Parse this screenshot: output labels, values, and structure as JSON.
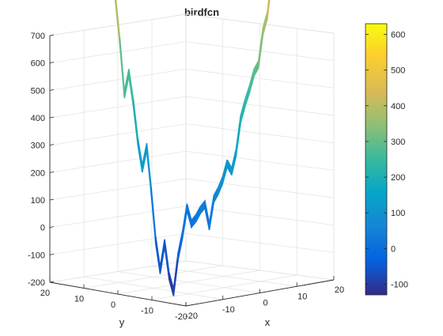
{
  "chart_data": {
    "type": "surface",
    "title": "birdfcn",
    "xlabel": "x",
    "ylabel": "y",
    "zlabel": "",
    "x_ticks": [
      "-20",
      "-10",
      "0",
      "10",
      "20"
    ],
    "y_ticks": [
      "20",
      "10",
      "0",
      "-10",
      "-20"
    ],
    "z_ticks": [
      "-200",
      "-100",
      "0",
      "100",
      "200",
      "300",
      "400",
      "500",
      "600",
      "700"
    ],
    "zlim": [
      -200,
      700
    ],
    "colorbar": {
      "ticks": [
        "-100",
        "0",
        "100",
        "200",
        "300",
        "400",
        "500",
        "600"
      ],
      "range": [
        -130,
        630
      ],
      "colormap": "parula"
    },
    "profile": {
      "description_units": "horizontal position along front edge (-1 left to 1 right) vs z value",
      "points": [
        [
          -1.0,
          635
        ],
        [
          -0.95,
          560
        ],
        [
          -0.9,
          505
        ],
        [
          -0.85,
          420
        ],
        [
          -0.8,
          340
        ],
        [
          -0.75,
          245
        ],
        [
          -0.7,
          285
        ],
        [
          -0.65,
          230
        ],
        [
          -0.6,
          160
        ],
        [
          -0.55,
          110
        ],
        [
          -0.5,
          150
        ],
        [
          -0.45,
          70
        ],
        [
          -0.4,
          -20
        ],
        [
          -0.35,
          -75
        ],
        [
          -0.3,
          -25
        ],
        [
          -0.25,
          -85
        ],
        [
          -0.2,
          -115
        ],
        [
          -0.15,
          -50
        ],
        [
          -0.1,
          -10
        ],
        [
          -0.05,
          40
        ],
        [
          0.0,
          10
        ],
        [
          0.05,
          20
        ],
        [
          0.1,
          35
        ],
        [
          0.15,
          45
        ],
        [
          0.2,
          5
        ],
        [
          0.25,
          55
        ],
        [
          0.3,
          70
        ],
        [
          0.35,
          90
        ],
        [
          0.4,
          120
        ],
        [
          0.45,
          105
        ],
        [
          0.5,
          140
        ],
        [
          0.55,
          200
        ],
        [
          0.6,
          230
        ],
        [
          0.65,
          255
        ],
        [
          0.7,
          285
        ],
        [
          0.75,
          300
        ],
        [
          0.8,
          360
        ],
        [
          0.85,
          390
        ],
        [
          0.9,
          460
        ],
        [
          0.95,
          560
        ],
        [
          1.0,
          625
        ]
      ]
    },
    "colors": {
      "axis": "#262626",
      "grid": "#e1e1e1"
    }
  }
}
